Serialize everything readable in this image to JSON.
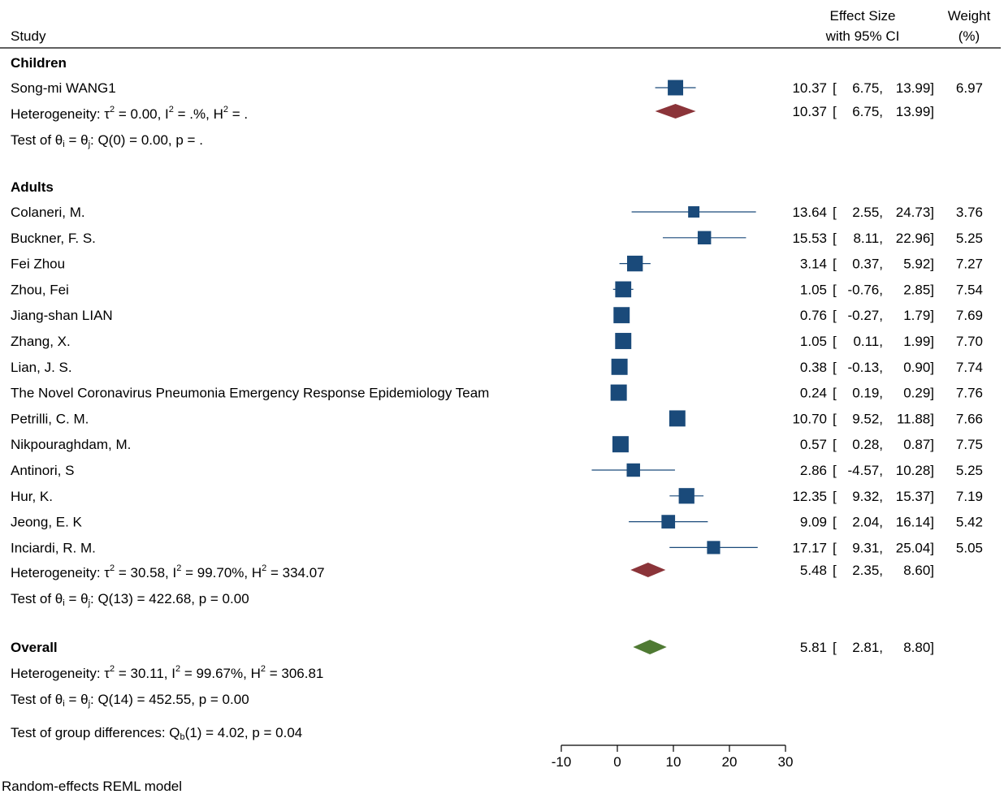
{
  "chart_data": {
    "type": "forest",
    "header": {
      "study": "Study",
      "effect_line1": "Effect Size",
      "effect_line2": "with 95% CI",
      "weight_line1": "Weight",
      "weight_line2": "(%)"
    },
    "colors": {
      "study_marker": "#1a4a7a",
      "group_diamond": "#8b3439",
      "overall_diamond": "#4f7a33",
      "ci_line": "#1a4a7a"
    },
    "xaxis": {
      "ticks": [
        -10,
        0,
        10,
        20,
        30
      ],
      "range": [
        -10,
        30
      ]
    },
    "groups": [
      {
        "label": "Children",
        "studies": [
          {
            "name": "Song-mi WANG1",
            "es": 10.37,
            "lo": 6.75,
            "hi": 13.99,
            "weight": 6.97
          }
        ],
        "summary": {
          "es": 10.37,
          "lo": 6.75,
          "hi": 13.99
        },
        "het": {
          "tau2": "0.00",
          "i2": ".%",
          "h2": "."
        },
        "test": {
          "q": "0",
          "qval": "0.00",
          "p": "."
        }
      },
      {
        "label": "Adults",
        "studies": [
          {
            "name": "Colaneri, M.",
            "es": 13.64,
            "lo": 2.55,
            "hi": 24.73,
            "weight": 3.76
          },
          {
            "name": "Buckner, F. S.",
            "es": 15.53,
            "lo": 8.11,
            "hi": 22.96,
            "weight": 5.25
          },
          {
            "name": "Fei Zhou",
            "es": 3.14,
            "lo": 0.37,
            "hi": 5.92,
            "weight": 7.27
          },
          {
            "name": "Zhou, Fei",
            "es": 1.05,
            "lo": -0.76,
            "hi": 2.85,
            "weight": 7.54
          },
          {
            "name": "Jiang-shan LIAN",
            "es": 0.76,
            "lo": -0.27,
            "hi": 1.79,
            "weight": 7.69
          },
          {
            "name": "Zhang, X.",
            "es": 1.05,
            "lo": 0.11,
            "hi": 1.99,
            "weight": 7.7
          },
          {
            "name": "Lian, J. S.",
            "es": 0.38,
            "lo": -0.13,
            "hi": 0.9,
            "weight": 7.74
          },
          {
            "name": "The Novel Coronavirus Pneumonia Emergency Response Epidemiology Team",
            "es": 0.24,
            "lo": 0.19,
            "hi": 0.29,
            "weight": 7.76
          },
          {
            "name": "Petrilli, C. M.",
            "es": 10.7,
            "lo": 9.52,
            "hi": 11.88,
            "weight": 7.66
          },
          {
            "name": "Nikpouraghdam, M.",
            "es": 0.57,
            "lo": 0.28,
            "hi": 0.87,
            "weight": 7.75
          },
          {
            "name": "Antinori, S",
            "es": 2.86,
            "lo": -4.57,
            "hi": 10.28,
            "weight": 5.25
          },
          {
            "name": "Hur, K.",
            "es": 12.35,
            "lo": 9.32,
            "hi": 15.37,
            "weight": 7.19
          },
          {
            "name": "Jeong, E. K",
            "es": 9.09,
            "lo": 2.04,
            "hi": 16.14,
            "weight": 5.42
          },
          {
            "name": "Inciardi, R. M.",
            "es": 17.17,
            "lo": 9.31,
            "hi": 25.04,
            "weight": 5.05
          }
        ],
        "summary": {
          "es": 5.48,
          "lo": 2.35,
          "hi": 8.6
        },
        "het": {
          "tau2": "30.58",
          "i2": "99.70%",
          "h2": "334.07"
        },
        "test": {
          "q": "13",
          "qval": "422.68",
          "p": "0.00"
        }
      }
    ],
    "overall": {
      "label": "Overall",
      "summary": {
        "es": 5.81,
        "lo": 2.81,
        "hi": 8.8
      },
      "het": {
        "tau2": "30.11",
        "i2": "99.67%",
        "h2": "306.81"
      },
      "test": {
        "q": "14",
        "qval": "452.55",
        "p": "0.00"
      }
    },
    "group_diff": {
      "df": "1",
      "q": "4.02",
      "p": "0.04"
    },
    "note": "Random-effects REML model"
  }
}
